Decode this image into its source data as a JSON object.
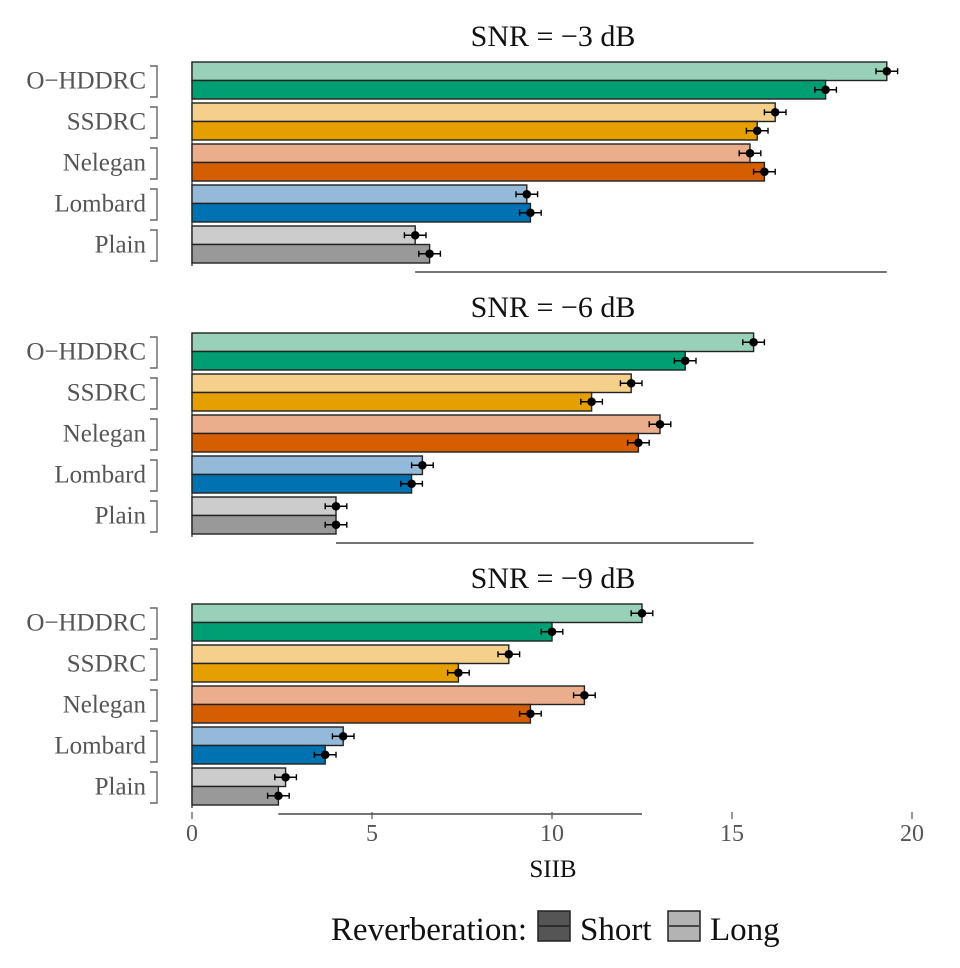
{
  "chart_data": {
    "type": "bar",
    "orientation": "horizontal",
    "xlabel": "SIIB",
    "xlim": [
      0,
      20
    ],
    "x_ticks": [
      "0",
      "5",
      "10",
      "15",
      "20"
    ],
    "grid": false,
    "categories": [
      "O−HDDRC",
      "SSDRC",
      "Nelegan",
      "Lombard",
      "Plain"
    ],
    "legend": {
      "title": "Reverberation:",
      "position": "bottom",
      "entries": [
        "Short",
        "Long"
      ]
    },
    "category_colors": {
      "O−HDDRC": {
        "Short": "#009E73",
        "Long": "#99D0B9"
      },
      "SSDRC": {
        "Short": "#E69F00",
        "Long": "#F5D08A"
      },
      "Nelegan": {
        "Short": "#D55E00",
        "Long": "#EBAE8C"
      },
      "Lombard": {
        "Short": "#0072B2",
        "Long": "#95B9D9"
      },
      "Plain": {
        "Short": "#999999",
        "Long": "#CCCCCC"
      }
    },
    "panels": [
      {
        "title": "SNR = −3 dB",
        "series": [
          {
            "name": "Long",
            "values": [
              19.3,
              16.2,
              15.5,
              9.3,
              6.2
            ],
            "errors": [
              0.3,
              0.3,
              0.3,
              0.3,
              0.3
            ]
          },
          {
            "name": "Short",
            "values": [
              17.6,
              15.7,
              15.9,
              9.4,
              6.6
            ],
            "errors": [
              0.3,
              0.3,
              0.3,
              0.3,
              0.3
            ]
          }
        ]
      },
      {
        "title": "SNR = −6 dB",
        "series": [
          {
            "name": "Long",
            "values": [
              15.6,
              12.2,
              13.0,
              6.4,
              4.0
            ],
            "errors": [
              0.3,
              0.3,
              0.3,
              0.3,
              0.3
            ]
          },
          {
            "name": "Short",
            "values": [
              13.7,
              11.1,
              12.4,
              6.1,
              4.0
            ],
            "errors": [
              0.3,
              0.3,
              0.3,
              0.3,
              0.3
            ]
          }
        ]
      },
      {
        "title": "SNR = −9 dB",
        "series": [
          {
            "name": "Long",
            "values": [
              12.5,
              8.8,
              10.9,
              4.2,
              2.6
            ],
            "errors": [
              0.3,
              0.3,
              0.3,
              0.3,
              0.3
            ]
          },
          {
            "name": "Short",
            "values": [
              10.0,
              7.4,
              9.4,
              3.7,
              2.4
            ],
            "errors": [
              0.3,
              0.3,
              0.3,
              0.3,
              0.3
            ]
          }
        ]
      }
    ]
  }
}
